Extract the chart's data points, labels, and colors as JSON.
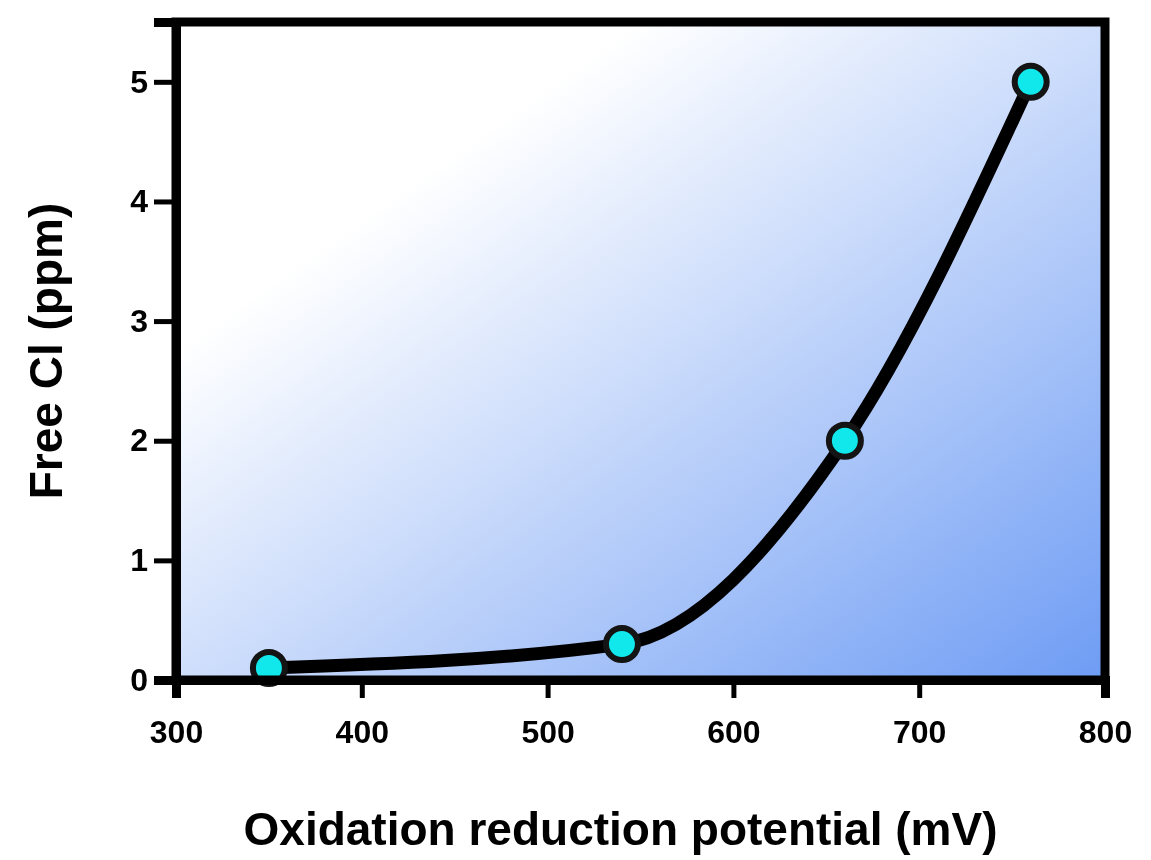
{
  "chart_data": {
    "type": "line",
    "xlabel": "Oxidation reduction potential (mV)",
    "ylabel": "Free Cl (ppm)",
    "x": [
      350,
      540,
      660,
      760
    ],
    "series": [
      {
        "color": "#000000",
        "values": [
          0.1,
          0.3,
          2,
          5
        ]
      }
    ],
    "xlim": [
      300,
      800
    ],
    "xticks": [
      300,
      400,
      500,
      600,
      700,
      800
    ],
    "ylim": [
      0,
      5.5
    ],
    "yticks": [
      0,
      1,
      2,
      3,
      4,
      5
    ],
    "marker": "circle",
    "line_style": "solid",
    "grid": false
  }
}
